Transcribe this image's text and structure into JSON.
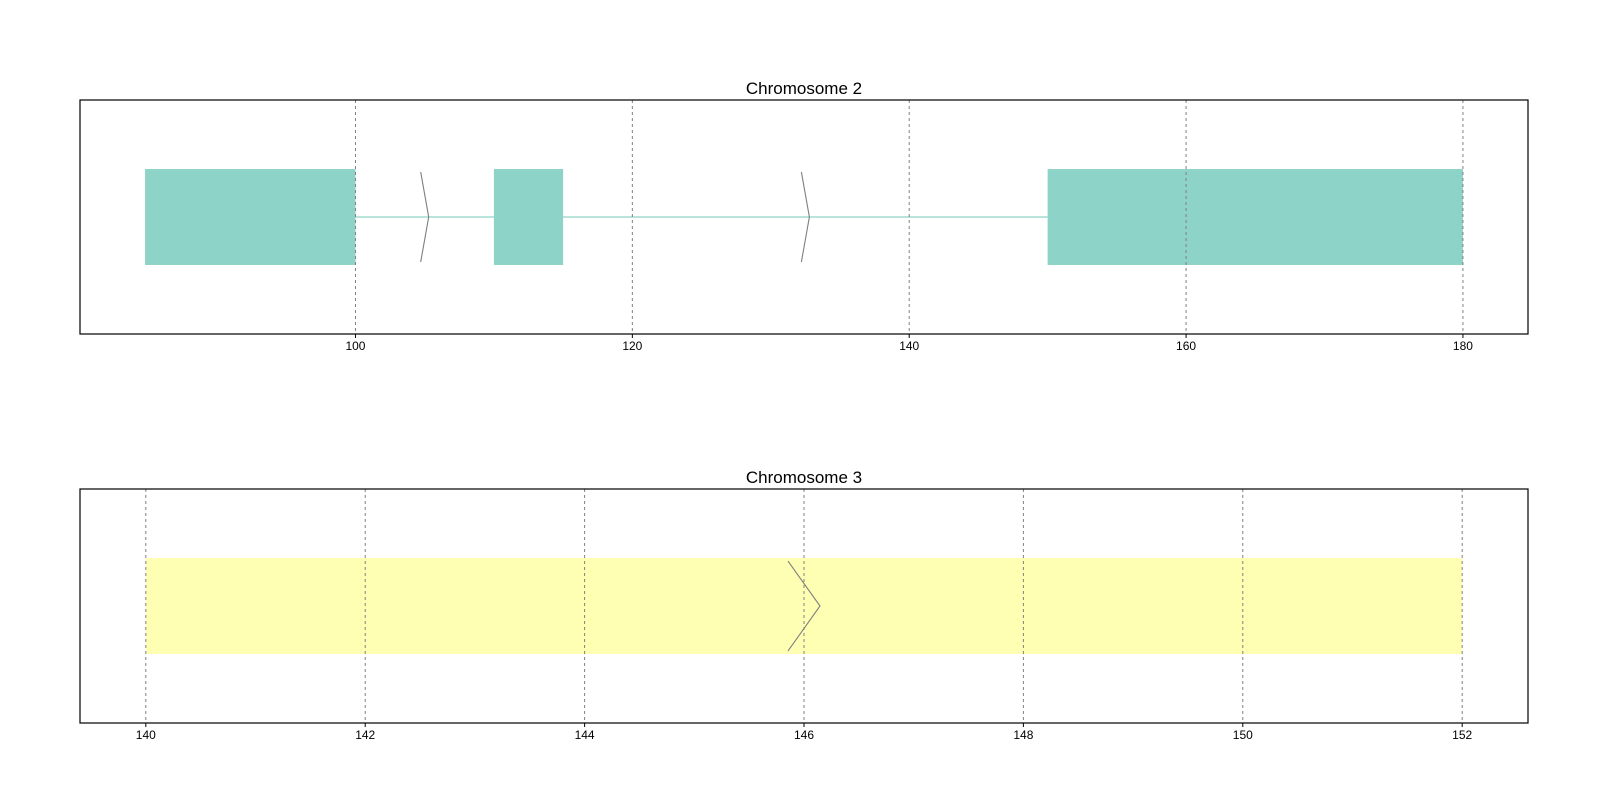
{
  "chart_data": [
    {
      "type": "gene-track",
      "title": "Chromosome 2",
      "xlim": [
        80.1,
        184.7
      ],
      "xticks": [
        100,
        120,
        140,
        160,
        180
      ],
      "xtick_labels": [
        "100",
        "120",
        "140",
        "160",
        "180"
      ],
      "grid": true,
      "feature_color": "#8dd3c7",
      "exons": [
        {
          "start": 84.8,
          "end": 100.0
        },
        {
          "start": 110.0,
          "end": 115.0
        },
        {
          "start": 150.0,
          "end": 180.0
        }
      ],
      "introns": [
        {
          "start": 100.0,
          "end": 110.0
        },
        {
          "start": 115.0,
          "end": 150.0
        }
      ],
      "strand_arrows": [
        105.0,
        132.5
      ]
    },
    {
      "type": "gene-track",
      "title": "Chromosome 3",
      "xlim": [
        139.4,
        152.6
      ],
      "xticks": [
        140,
        142,
        144,
        146,
        148,
        150,
        152
      ],
      "xtick_labels": [
        "140",
        "142",
        "144",
        "146",
        "148",
        "150",
        "152"
      ],
      "grid": true,
      "feature_color": "#ffffb3",
      "exons": [
        {
          "start": 140.0,
          "end": 152.0
        }
      ],
      "introns": [],
      "strand_arrows": [
        146.0
      ]
    }
  ]
}
